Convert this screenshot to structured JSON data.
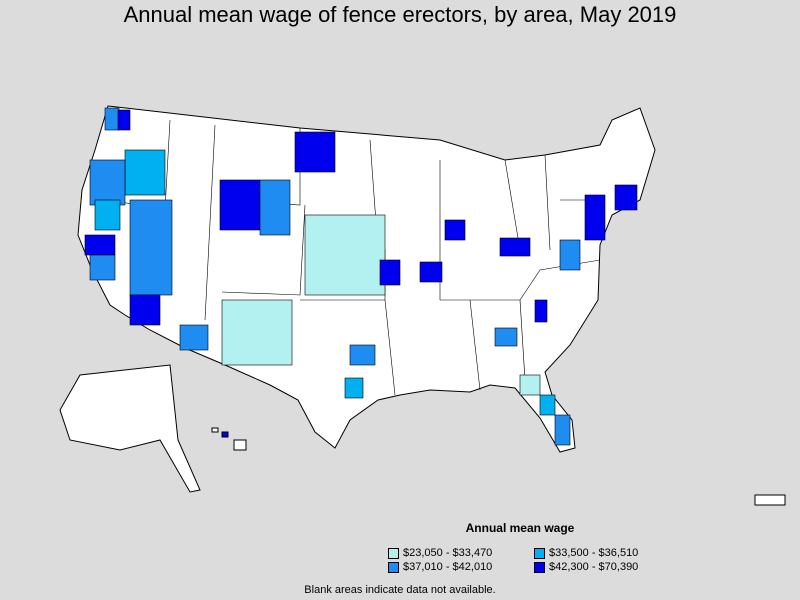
{
  "title": "Annual mean wage of fence erectors, by area, May 2019",
  "legend": {
    "title": "Annual mean wage",
    "items": [
      {
        "label": "$23,050 - $33,470",
        "color": "#b3f0f0"
      },
      {
        "label": "$33,500 - $36,510",
        "color": "#00b0f0"
      },
      {
        "label": "$37,010 - $42,010",
        "color": "#1e8cf0"
      },
      {
        "label": "$42,300 - $70,390",
        "color": "#0000ee"
      }
    ]
  },
  "note": "Blank areas indicate data not available.",
  "colors": {
    "background": "#dcdcdc",
    "land": "#ffffff",
    "border": "#000000"
  }
}
